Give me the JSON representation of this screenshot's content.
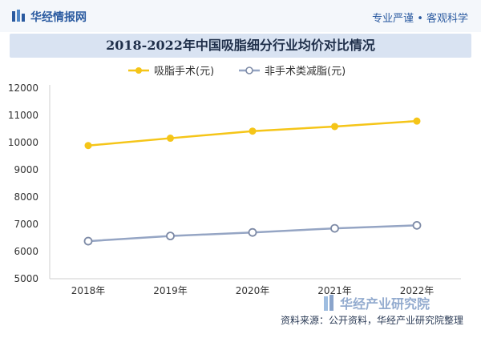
{
  "header": {
    "brand": "华经情报网",
    "tagline": "专业严谨 • 客观科学"
  },
  "watermark": {
    "logo_text": "华经产业研究院"
  },
  "footer": {
    "source": "资料来源：公开资料，华经产业研究院整理"
  },
  "colors": {
    "series1": "#f5c518",
    "series2": "#95a5c4",
    "title_bg": "#d9e3f2",
    "brand": "#2a5aa0"
  },
  "chart_data": {
    "type": "line",
    "title": "2018-2022年中国吸脂细分行业均价对比情况",
    "categories": [
      "2018年",
      "2019年",
      "2020年",
      "2021年",
      "2022年"
    ],
    "series": [
      {
        "name": "吸脂手术(元)",
        "values": [
          9890,
          10160,
          10420,
          10590,
          10790
        ]
      },
      {
        "name": "非手术类减脂(元)",
        "values": [
          6380,
          6570,
          6700,
          6850,
          6960
        ]
      }
    ],
    "ylim": [
      5000,
      12000
    ],
    "yticks": [
      5000,
      6000,
      7000,
      8000,
      9000,
      10000,
      11000,
      12000
    ],
    "grid": false,
    "legend": "top"
  }
}
